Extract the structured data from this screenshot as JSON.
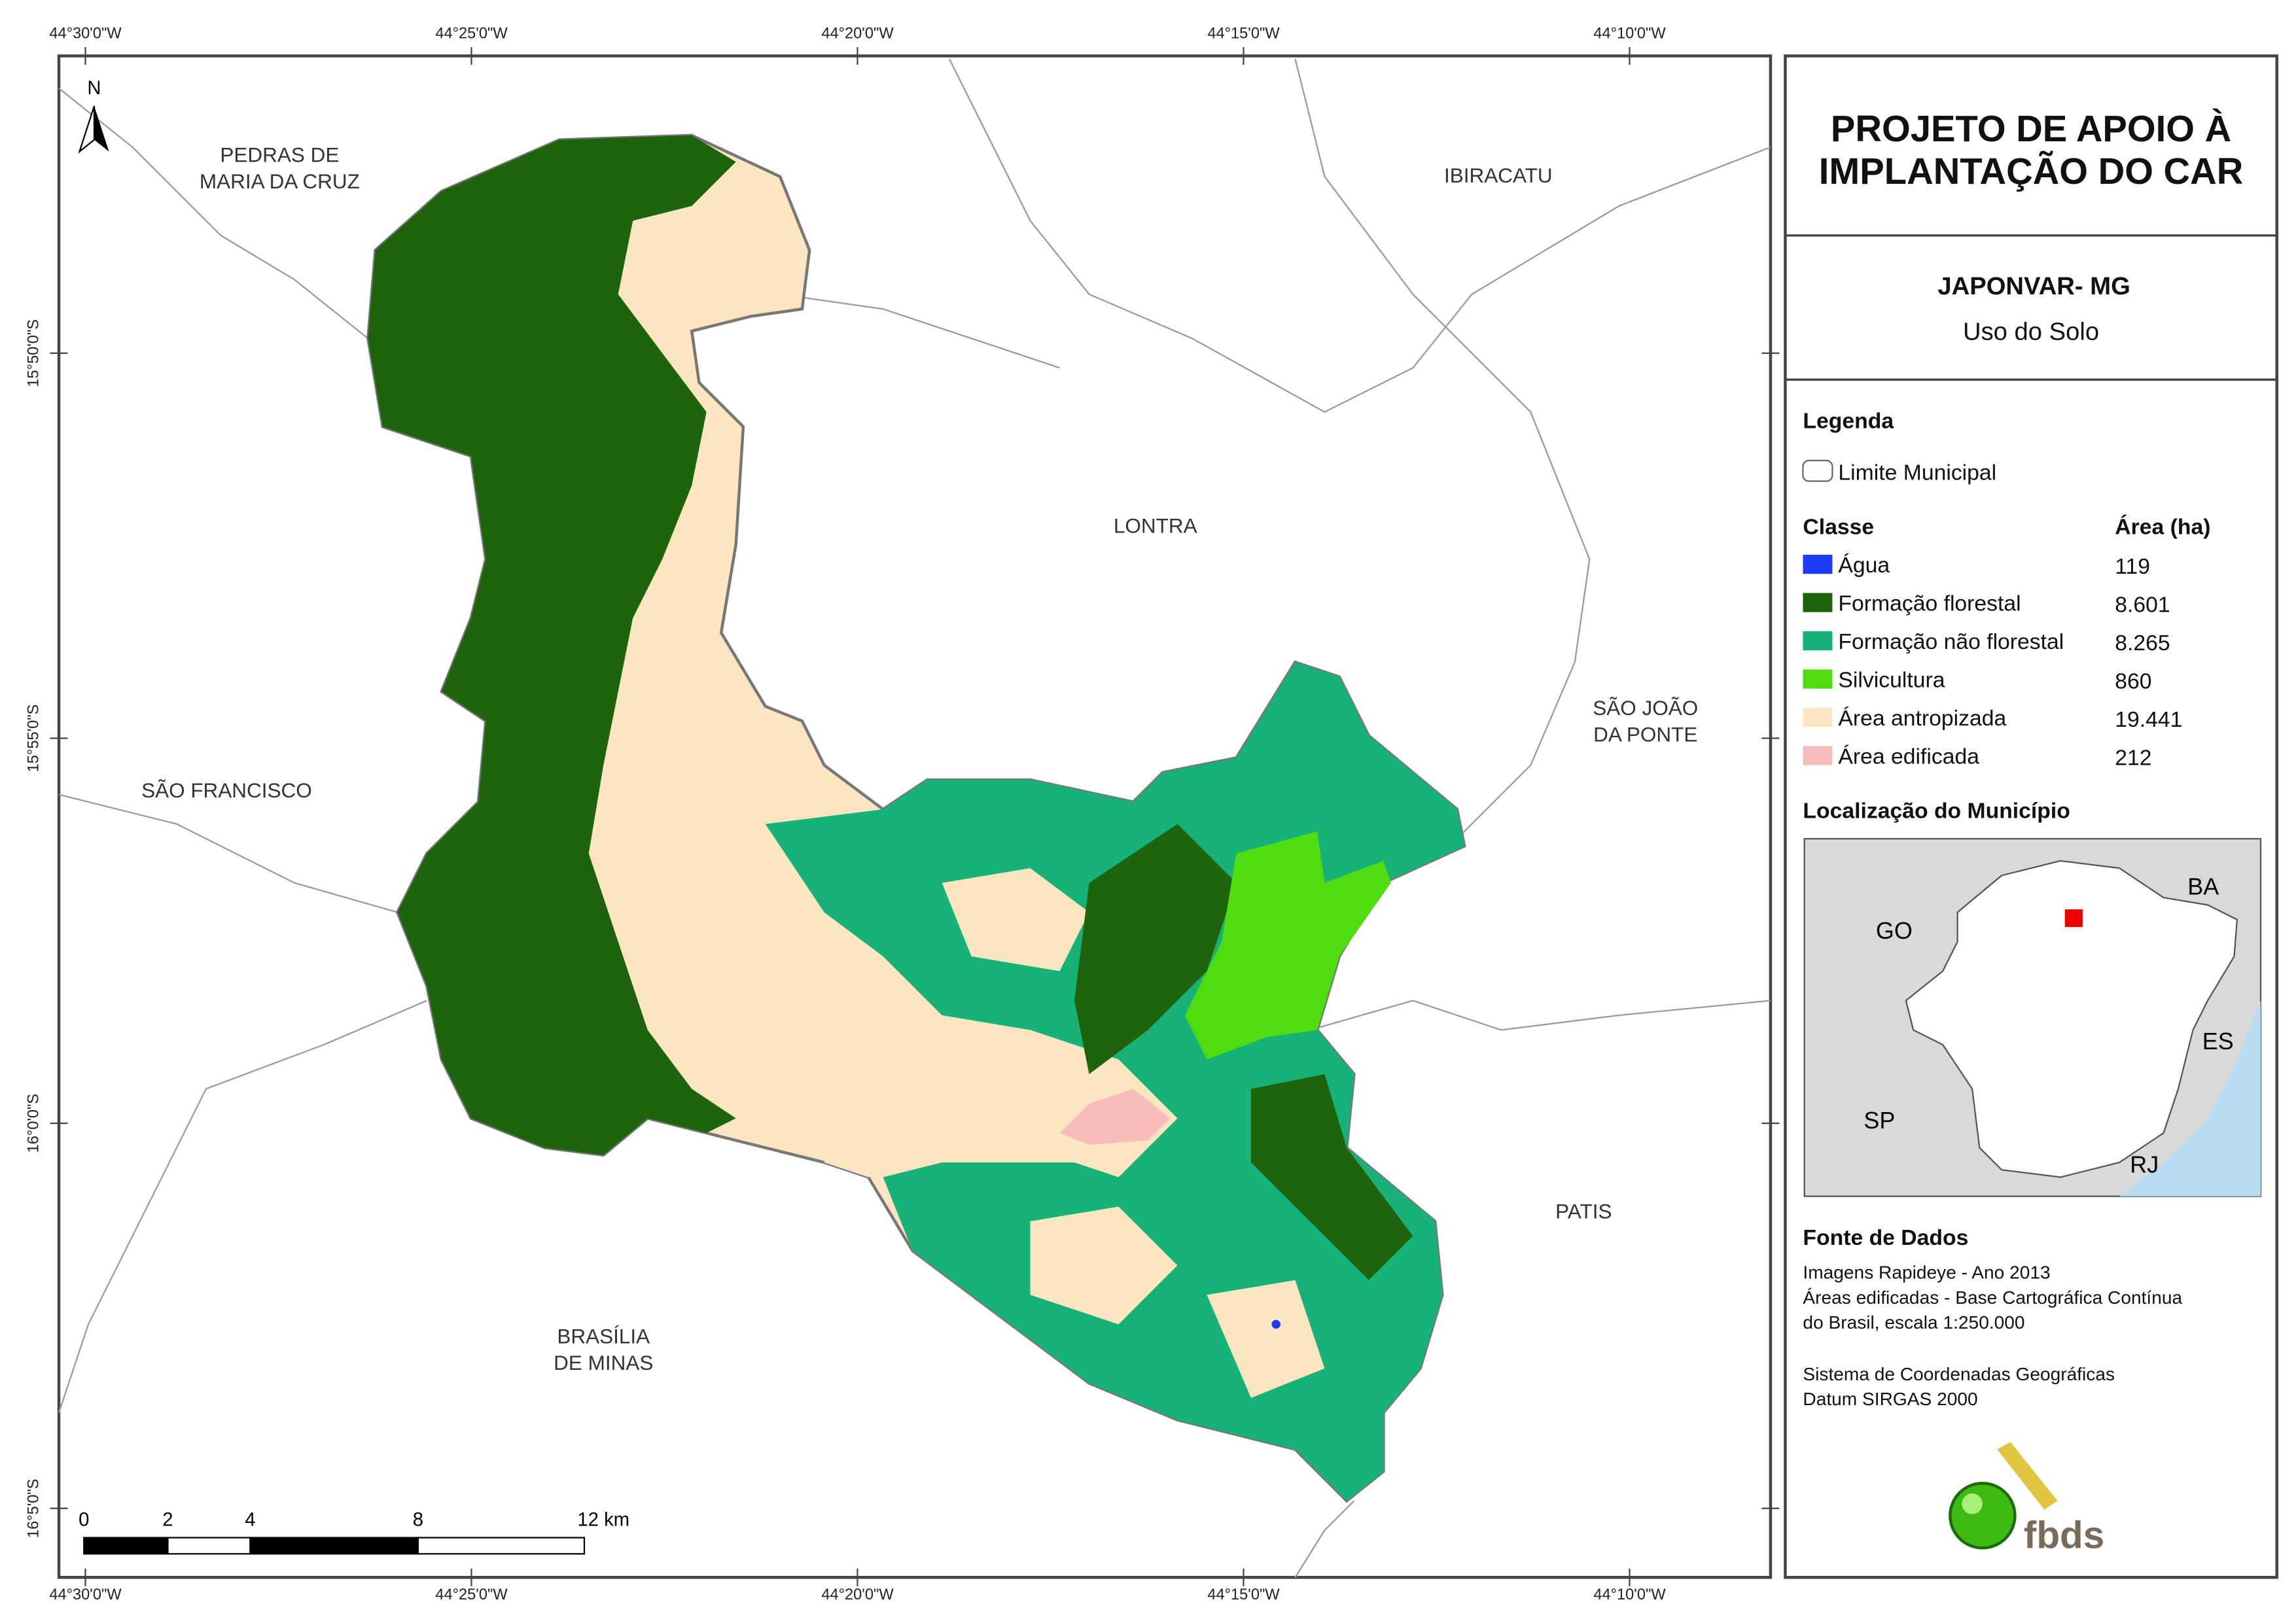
{
  "title": [
    "PROJETO DE APOIO À",
    "IMPLANTAÇÃO DO CAR"
  ],
  "subtitle": "JAPONVAR- MG",
  "theme": "Uso do Solo",
  "longitude_labels": [
    "44°30'0\"W",
    "44°25'0\"W",
    "44°20'0\"W",
    "44°15'0\"W",
    "44°10'0\"W"
  ],
  "latitude_labels": [
    "15°50'0\"S",
    "15°55'0\"S",
    "16°0'0\"S",
    "16°5'0\"S"
  ],
  "neighbors": [
    {
      "lines": [
        "PEDRAS DE",
        "MARIA DA CRUZ"
      ]
    },
    {
      "lines": [
        "IBIRACATU"
      ]
    },
    {
      "lines": [
        "LONTRA"
      ]
    },
    {
      "lines": [
        "SÃO JOÃO",
        "DA PONTE"
      ]
    },
    {
      "lines": [
        "SÃO FRANCISCO"
      ]
    },
    {
      "lines": [
        "PATIS"
      ]
    },
    {
      "lines": [
        "BRASÍLIA",
        "DE MINAS"
      ]
    }
  ],
  "north": "N",
  "scale_labels": [
    "0",
    "2",
    "4",
    "8",
    "12 km"
  ],
  "legend": {
    "heading": "Legenda",
    "boundary": "Limite Municipal",
    "class_heading": "Classe",
    "area_heading": "Área (ha)",
    "classes": [
      {
        "name": "Água",
        "area": "119",
        "color": "#1c3cf5"
      },
      {
        "name": "Formação florestal",
        "area": "8.601",
        "color": "#1e640c"
      },
      {
        "name": "Formação não florestal",
        "area": "8.265",
        "color": "#16b277"
      },
      {
        "name": "Silvicultura",
        "area": "860",
        "color": "#4fdc10"
      },
      {
        "name": "Área antropizada",
        "area": "19.441",
        "color": "#fbe6c1"
      },
      {
        "name": "Área edificada",
        "area": "212",
        "color": "#f9bcbc"
      }
    ]
  },
  "location": {
    "heading": "Localização do Município",
    "states": [
      "GO",
      "BA",
      "ES",
      "SP",
      "RJ"
    ]
  },
  "sources": {
    "heading": "Fonte de Dados",
    "lines": [
      "Imagens Rapideye - Ano 2013",
      "Áreas edificadas - Base Cartográfica Contínua",
      "do Brasil, escala 1:250.000",
      "Sistema de Coordenadas Geográficas",
      "Datum SIRGAS 2000"
    ]
  },
  "logo": "fbds"
}
